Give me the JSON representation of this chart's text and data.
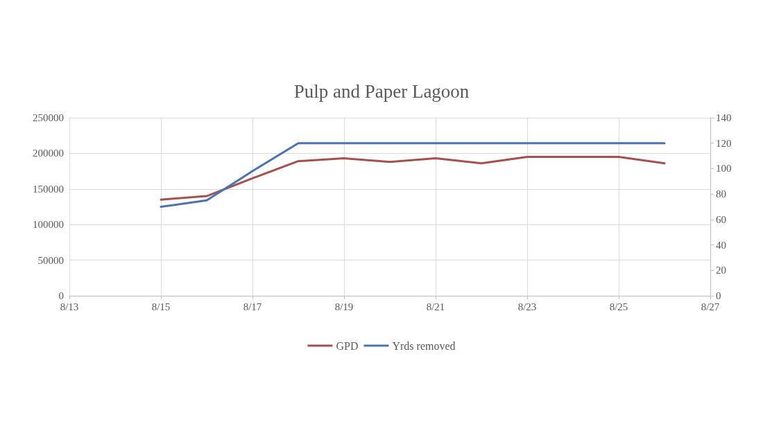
{
  "chart_data": {
    "type": "line",
    "title": "Pulp and Paper Lagoon",
    "x": [
      "--08-15",
      "--08-16",
      "--08-17",
      "--08-18",
      "--08-19",
      "--08-20",
      "--08-21",
      "--08-22",
      "--08-23",
      "--08-24",
      "--08-25",
      "--08-26"
    ],
    "series": [
      {
        "name": "GPD",
        "color": "#a5504c",
        "values": [
          135000,
          140000,
          165000,
          189000,
          193000,
          188000,
          193000,
          186000,
          195000,
          195000,
          195000,
          186000
        ]
      },
      {
        "name": "Yrds removed",
        "color": "#4a72b0",
        "axis": "y2",
        "values": [
          70,
          75,
          98,
          120,
          120,
          120,
          120,
          120,
          120,
          120,
          120,
          120
        ]
      }
    ],
    "xlim": [
      "--08-13",
      "--08-27"
    ],
    "xticks": [
      {
        "value": "--08-13",
        "label": "8/13"
      },
      {
        "value": "--08-15",
        "label": "8/15"
      },
      {
        "value": "--08-17",
        "label": "8/17"
      },
      {
        "value": "--08-19",
        "label": "8/19"
      },
      {
        "value": "--08-21",
        "label": "8/21"
      },
      {
        "value": "--08-23",
        "label": "8/23"
      },
      {
        "value": "--08-25",
        "label": "8/25"
      },
      {
        "value": "--08-27",
        "label": "8/27"
      }
    ],
    "ylim": [
      0,
      250000
    ],
    "yticks": [
      0,
      50000,
      100000,
      150000,
      200000,
      250000
    ],
    "y2lim": [
      0,
      140
    ],
    "y2ticks": [
      0,
      20,
      40,
      60,
      80,
      100,
      120,
      140
    ],
    "grid": true,
    "legend": "bottom",
    "marker": "none",
    "line_style": "solid"
  }
}
